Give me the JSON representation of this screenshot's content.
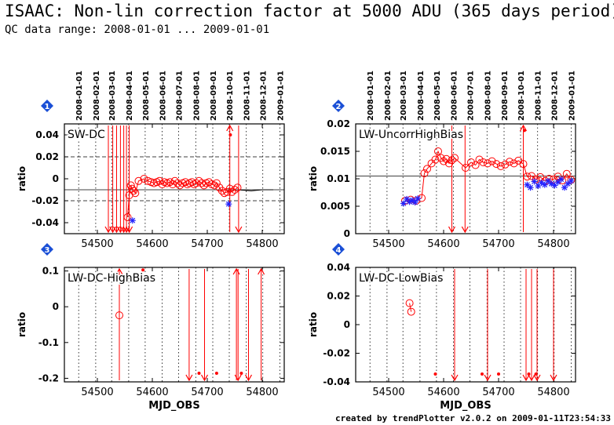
{
  "header": {
    "title": "ISAAC: Non-lin correction factor at 5000 ADU (365 days period)",
    "subtitle": "QC data range: 2008-01-01 ... 2009-01-01"
  },
  "footer": {
    "credit": "created by trendPlotter v2.0.2 on 2009-01-11T23:54:33"
  },
  "colors": {
    "data": "#ff0000",
    "marker_alt": "#2222ff",
    "badge": "#1a4fd6"
  },
  "chart_data": [
    {
      "type": "scatter",
      "badge": "1",
      "label": "SW-DC",
      "xlim": [
        54440,
        54840
      ],
      "ylim": [
        -0.05,
        0.05
      ],
      "xticks": [
        54500,
        54600,
        54700,
        54800
      ],
      "yticks": [
        -0.04,
        -0.02,
        0,
        0.02,
        0.04
      ],
      "ytick_labels": [
        "-0.04",
        "-0.02",
        "0",
        "0.02",
        "0.04"
      ],
      "ylabel": "ratio",
      "xlabel": "",
      "date_ticks": [
        "2008-01-01",
        "2008-02-01",
        "2008-03-01",
        "2008-04-01",
        "2008-05-01",
        "2008-06-01",
        "2008-07-01",
        "2008-08-01",
        "2008-09-01",
        "2008-10-01",
        "2008-11-01",
        "2008-12-01",
        "2009-01-01"
      ],
      "hlines": [
        {
          "y": -0.01,
          "style": "solid"
        },
        {
          "y": 0.02,
          "style": "dash"
        },
        {
          "y": -0.02,
          "style": "dash"
        }
      ],
      "series": [
        {
          "marker": "circle",
          "connect": true,
          "x": [
            54555,
            54558,
            54561,
            54563,
            54566,
            54569,
            54575,
            54585,
            54592,
            54598,
            54603,
            54608,
            54613,
            54618,
            54622,
            54627,
            54632,
            54637,
            54641,
            54646,
            54650,
            54655,
            54660,
            54664,
            54668,
            54672,
            54676,
            54680,
            54685,
            54690,
            54694,
            54698,
            54703,
            54708,
            54713,
            54717,
            54722,
            54727,
            54731,
            54736,
            54741,
            54745,
            54750,
            54755
          ],
          "y": [
            -0.035,
            -0.015,
            -0.006,
            -0.009,
            -0.011,
            -0.013,
            -0.002,
            0,
            -0.002,
            -0.003,
            -0.004,
            -0.003,
            -0.002,
            -0.005,
            -0.003,
            -0.004,
            -0.003,
            -0.005,
            -0.002,
            -0.004,
            -0.006,
            -0.004,
            -0.003,
            -0.005,
            -0.004,
            -0.003,
            -0.005,
            -0.004,
            -0.002,
            -0.004,
            -0.006,
            -0.004,
            -0.003,
            -0.005,
            -0.006,
            -0.004,
            -0.008,
            -0.011,
            -0.013,
            -0.012,
            -0.009,
            -0.012,
            -0.01,
            -0.008
          ]
        },
        {
          "marker": "star",
          "connect": false,
          "x": [
            54564,
            54739
          ],
          "y": [
            -0.038,
            -0.023
          ]
        },
        {
          "marker": "dot",
          "connect": false,
          "x": [
            54742
          ],
          "y": [
            0.04
          ]
        }
      ],
      "line_series": {
        "x": [
          54755,
          54780,
          54800,
          54820
        ],
        "y": [
          -0.01,
          -0.011,
          -0.01,
          -0.01
        ]
      },
      "outliers": [
        {
          "x": 54520,
          "dir": "down"
        },
        {
          "x": 54528,
          "dir": "down"
        },
        {
          "x": 54535,
          "dir": "down"
        },
        {
          "x": 54542,
          "dir": "down"
        },
        {
          "x": 54548,
          "dir": "down"
        },
        {
          "x": 54553,
          "dir": "down"
        },
        {
          "x": 54558,
          "dir": "down"
        },
        {
          "x": 54741,
          "dir": "up"
        },
        {
          "x": 54757,
          "dir": "down"
        }
      ]
    },
    {
      "type": "scatter",
      "badge": "2",
      "label": "LW-UncorrHighBias",
      "xlim": [
        54440,
        54840
      ],
      "ylim": [
        0,
        0.02
      ],
      "xticks": [
        54500,
        54600,
        54700,
        54800
      ],
      "yticks": [
        0,
        0.005,
        0.01,
        0.015,
        0.02
      ],
      "ytick_labels": [
        "0",
        "0.005",
        "0.01",
        "0.015",
        "0.02"
      ],
      "ylabel": "ratio",
      "xlabel": "",
      "date_ticks": [
        "2008-01-01",
        "2008-02-01",
        "2008-03-01",
        "2008-04-01",
        "2008-05-01",
        "2008-06-01",
        "2008-07-01",
        "2008-08-01",
        "2008-09-01",
        "2008-10-01",
        "2008-11-01",
        "2008-12-01",
        "2009-01-01"
      ],
      "hlines": [
        {
          "y": 0.0105,
          "style": "solid"
        }
      ],
      "series": [
        {
          "marker": "circle",
          "connect": true,
          "x": [
            54530,
            54540,
            54550,
            54560,
            54565,
            54570,
            54578,
            54585,
            54590,
            54595,
            54600,
            54605,
            54610,
            54615,
            54620,
            54640,
            54650,
            54658,
            54665,
            54672,
            54680,
            54688,
            54696,
            54704,
            54712,
            54720,
            54728,
            54736,
            54745,
            54752,
            54760,
            54768,
            54776,
            54785,
            54792,
            54800,
            54808,
            54816,
            54824,
            54832
          ],
          "y": [
            0.006,
            0.0062,
            0.006,
            0.0065,
            0.011,
            0.0118,
            0.0128,
            0.0135,
            0.015,
            0.0138,
            0.0132,
            0.0136,
            0.0128,
            0.0134,
            0.0138,
            0.012,
            0.013,
            0.0125,
            0.0135,
            0.013,
            0.0128,
            0.0132,
            0.0127,
            0.0123,
            0.0126,
            0.0131,
            0.0128,
            0.0133,
            0.0127,
            0.0104,
            0.0105,
            0.0099,
            0.0103,
            0.0096,
            0.01,
            0.0099,
            0.0104,
            0.0097,
            0.0109,
            0.0098
          ]
        },
        {
          "marker": "star",
          "connect": false,
          "x": [
            54527,
            54533,
            54538,
            54543,
            54548,
            54553,
            54752,
            54758,
            54765,
            54772,
            54778,
            54784,
            54790,
            54796,
            54802,
            54808,
            54814,
            54820,
            54826,
            54832
          ],
          "y": [
            0.0055,
            0.0063,
            0.0058,
            0.0061,
            0.0057,
            0.0064,
            0.0089,
            0.0084,
            0.0095,
            0.0087,
            0.0093,
            0.0089,
            0.0096,
            0.0091,
            0.0088,
            0.0094,
            0.0099,
            0.0084,
            0.0091,
            0.0096
          ]
        },
        {
          "marker": "dot",
          "connect": false,
          "x": [
            54747
          ],
          "y": [
            0.0188
          ]
        }
      ],
      "outliers": [
        {
          "x": 54615,
          "dir": "down"
        },
        {
          "x": 54639,
          "dir": "down"
        },
        {
          "x": 54745,
          "dir": "up"
        }
      ]
    },
    {
      "type": "scatter",
      "badge": "3",
      "label": "LW-DC-HighBias",
      "xlim": [
        54440,
        54840
      ],
      "ylim": [
        -0.21,
        0.11
      ],
      "xticks": [
        54500,
        54600,
        54700,
        54800
      ],
      "yticks": [
        -0.2,
        -0.1,
        0,
        0.1
      ],
      "ytick_labels": [
        "-0.2",
        "-0.1",
        "0",
        "0.1"
      ],
      "ylabel": "ratio",
      "xlabel": "MJD_OBS",
      "date_ticks": [],
      "hlines": [],
      "series": [
        {
          "marker": "circle",
          "connect": false,
          "x": [
            54540
          ],
          "y": [
            -0.024
          ]
        },
        {
          "marker": "dot",
          "connect": false,
          "x": [
            54583,
            54685,
            54717,
            54762
          ],
          "y": [
            0.103,
            -0.186,
            -0.186,
            -0.186
          ]
        }
      ],
      "outliers": [
        {
          "x": 54540,
          "dir": "up"
        },
        {
          "x": 54667,
          "dir": "down"
        },
        {
          "x": 54695,
          "dir": "down"
        },
        {
          "x": 54753,
          "dir": "up"
        },
        {
          "x": 54756,
          "dir": "down"
        },
        {
          "x": 54775,
          "dir": "down"
        },
        {
          "x": 54798,
          "dir": "up"
        }
      ]
    },
    {
      "type": "scatter",
      "badge": "4",
      "label": "LW-DC-LowBias",
      "xlim": [
        54440,
        54840
      ],
      "ylim": [
        -0.04,
        0.04
      ],
      "xticks": [
        54500,
        54600,
        54700,
        54800
      ],
      "yticks": [
        -0.04,
        -0.02,
        0,
        0.02,
        0.04
      ],
      "ytick_labels": [
        "-0.04",
        "-0.02",
        "0",
        "0.02",
        "0.04"
      ],
      "ylabel": "ratio",
      "xlabel": "MJD_OBS",
      "date_ticks": [],
      "hlines": [],
      "series": [
        {
          "marker": "circle",
          "connect": true,
          "x": [
            54538,
            54541
          ],
          "y": [
            0.015,
            0.009
          ]
        },
        {
          "marker": "dot",
          "connect": false,
          "x": [
            54585,
            54670,
            54700,
            54755,
            54768
          ],
          "y": [
            -0.0345,
            -0.0345,
            -0.0345,
            -0.0345,
            -0.0345
          ]
        }
      ],
      "outliers": [
        {
          "x": 54620,
          "dir": "down"
        },
        {
          "x": 54680,
          "dir": "down"
        },
        {
          "x": 54750,
          "dir": "down"
        },
        {
          "x": 54760,
          "dir": "down"
        },
        {
          "x": 54770,
          "dir": "down"
        },
        {
          "x": 54800,
          "dir": "down"
        }
      ]
    }
  ]
}
